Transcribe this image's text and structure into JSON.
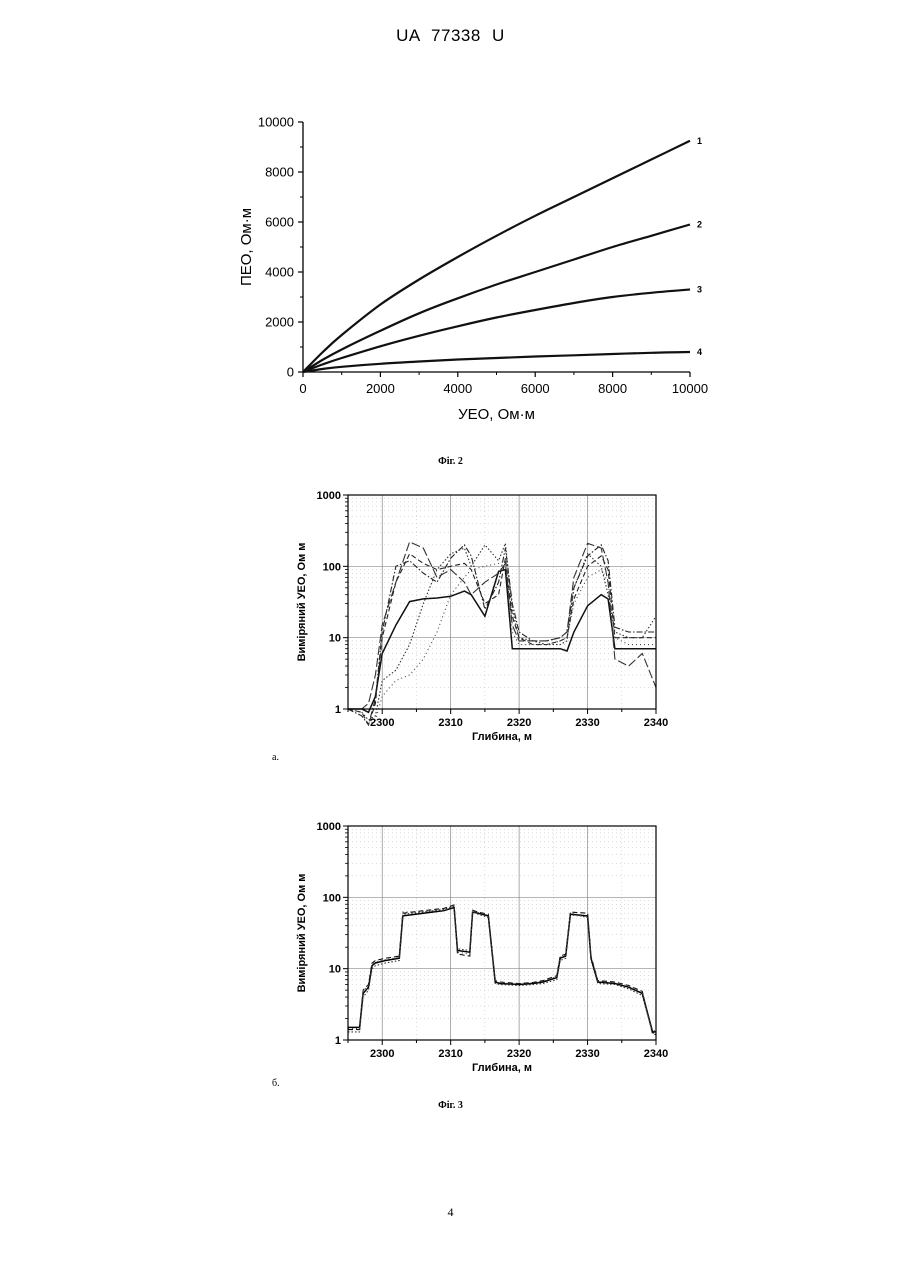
{
  "document": {
    "header": "UA 77338 U",
    "page_number": "4",
    "fig2_caption": "Фіг. 2",
    "fig3_caption": "Фіг. 3",
    "sub_a": "а.",
    "sub_b": "б."
  },
  "chart_data": [
    {
      "type": "line",
      "xlabel": "УЕО, Ом·м",
      "ylabel": "ПЕО, Ом·м",
      "xlim": [
        0,
        10000
      ],
      "ylim": [
        0,
        10000
      ],
      "x_ticks": [
        "0",
        "2000",
        "4000",
        "6000",
        "8000",
        "10000"
      ],
      "y_ticks": [
        "0",
        "2000",
        "4000",
        "6000",
        "8000",
        "10000"
      ],
      "x": [
        0,
        500,
        1000,
        2000,
        3000,
        4000,
        5000,
        6000,
        7000,
        8000,
        9000,
        10000
      ],
      "series": [
        {
          "name": "1",
          "values": [
            0,
            780,
            1480,
            2700,
            3700,
            4600,
            5450,
            6250,
            7000,
            7750,
            8500,
            9250
          ],
          "color": "#111111"
        },
        {
          "name": "2",
          "values": [
            0,
            480,
            900,
            1650,
            2350,
            2950,
            3500,
            4000,
            4500,
            5000,
            5450,
            5900
          ],
          "color": "#111111"
        },
        {
          "name": "3",
          "values": [
            0,
            300,
            560,
            1030,
            1450,
            1830,
            2180,
            2480,
            2760,
            3000,
            3170,
            3300
          ],
          "color": "#111111"
        },
        {
          "name": "4",
          "values": [
            0,
            120,
            210,
            330,
            420,
            500,
            560,
            620,
            670,
            720,
            770,
            800
          ],
          "color": "#111111"
        }
      ]
    },
    {
      "type": "line",
      "xlabel": "Глибина, м",
      "ylabel": "Виміряний УЕО, Ом м",
      "xlim": [
        2295,
        2340
      ],
      "ylim": [
        1,
        1000
      ],
      "log_y": true,
      "grid": true,
      "x_ticks": [
        "2300",
        "2310",
        "2320",
        "2330",
        "2340"
      ],
      "y_ticks": [
        "1",
        "10",
        "100",
        "1000"
      ],
      "x": [
        2295,
        2297,
        2298,
        2299,
        2300,
        2302,
        2304,
        2306,
        2308,
        2310,
        2312,
        2313,
        2315,
        2317,
        2318,
        2319,
        2320,
        2322,
        2324,
        2326,
        2327,
        2328,
        2330,
        2332,
        2333,
        2334,
        2336,
        2338,
        2340
      ],
      "series": [
        {
          "values": [
            1,
            1,
            0.9,
            1.5,
            6,
            15,
            32,
            35,
            36,
            38,
            45,
            40,
            20,
            85,
            90,
            7,
            7,
            7,
            7,
            7,
            6.5,
            12,
            28,
            40,
            35,
            7,
            7,
            7,
            7
          ],
          "style": "solid",
          "color": "#111111"
        },
        {
          "values": [
            1,
            0.9,
            0.6,
            1.2,
            10,
            60,
            150,
            110,
            90,
            100,
            110,
            90,
            30,
            40,
            130,
            20,
            10,
            8,
            8,
            9,
            10,
            35,
            100,
            140,
            90,
            10,
            10,
            10,
            10
          ],
          "style": "dash",
          "color": "#222222"
        },
        {
          "values": [
            1,
            0.8,
            0.6,
            1.4,
            12,
            100,
            120,
            80,
            60,
            130,
            200,
            140,
            25,
            60,
            180,
            30,
            12,
            9,
            9,
            10,
            12,
            50,
            140,
            200,
            120,
            14,
            12,
            12,
            12
          ],
          "style": "dashdot",
          "color": "#222222"
        },
        {
          "values": [
            1,
            1,
            1.2,
            3,
            15,
            60,
            220,
            180,
            70,
            90,
            60,
            40,
            60,
            80,
            110,
            15,
            9,
            9,
            9,
            10,
            12,
            70,
            210,
            180,
            60,
            5,
            4,
            6,
            2
          ],
          "style": "longdash",
          "color": "#333333"
        },
        {
          "values": [
            1,
            0.9,
            0.7,
            0.8,
            2.5,
            3.5,
            8,
            30,
            90,
            150,
            180,
            100,
            200,
            120,
            210,
            25,
            10,
            9,
            8,
            8,
            9,
            50,
            150,
            100,
            40,
            12,
            10,
            10,
            20
          ],
          "style": "dot",
          "color": "#333333"
        },
        {
          "values": [
            1,
            0.9,
            0.6,
            0.7,
            1.5,
            2.5,
            3,
            5,
            12,
            40,
            70,
            90,
            100,
            110,
            120,
            12,
            8,
            8,
            8,
            9,
            10,
            30,
            70,
            90,
            60,
            10,
            8,
            8,
            8
          ],
          "style": "dot2",
          "color": "#444444"
        }
      ]
    },
    {
      "type": "line",
      "xlabel": "Глибина, м",
      "ylabel": "Виміряний УЕО, Ом м",
      "xlim": [
        2295,
        2340
      ],
      "ylim": [
        1,
        1000
      ],
      "log_y": true,
      "grid": true,
      "x_ticks": [
        "2300",
        "2310",
        "2320",
        "2330",
        "2340"
      ],
      "y_ticks": [
        "1",
        "10",
        "100",
        "1000"
      ],
      "x": [
        2295,
        2296.7,
        2297.2,
        2298,
        2298.5,
        2299,
        2300.5,
        2302.5,
        2303,
        2306,
        2309,
        2310.5,
        2311,
        2312.8,
        2313.2,
        2314,
        2315.5,
        2316.5,
        2317.2,
        2320,
        2322,
        2323.5,
        2325.5,
        2326,
        2326.8,
        2327.5,
        2330,
        2330.5,
        2331.5,
        2334,
        2336,
        2338,
        2339.5,
        2340
      ],
      "series": [
        {
          "values": [
            1.5,
            1.5,
            4.5,
            5.5,
            11,
            12,
            13,
            14,
            55,
            60,
            65,
            72,
            18,
            17,
            62,
            60,
            55,
            6.5,
            6.2,
            6.0,
            6.2,
            6.5,
            7.5,
            14,
            15,
            58,
            55,
            14,
            6.5,
            6.2,
            5.5,
            4.5,
            1.3,
            1.3
          ],
          "style": "solid",
          "color": "#000000"
        },
        {
          "values": [
            1.4,
            1.4,
            5,
            6,
            12,
            13,
            14,
            15,
            60,
            65,
            70,
            78,
            16,
            15,
            66,
            62,
            58,
            6.8,
            6.5,
            6.2,
            6.4,
            6.8,
            8,
            15,
            16,
            62,
            60,
            15,
            6.8,
            6.5,
            5.8,
            4.8,
            1.2,
            1.2
          ],
          "style": "dash",
          "color": "#111111"
        },
        {
          "values": [
            1.3,
            1.3,
            4,
            5,
            10,
            11,
            12,
            13,
            58,
            62,
            68,
            75,
            19,
            18,
            64,
            58,
            52,
            6.2,
            6.0,
            5.8,
            6.0,
            6.2,
            7,
            13,
            14,
            60,
            52,
            13,
            6.2,
            6.0,
            5.2,
            4.2,
            1.25,
            1.25
          ],
          "style": "dot",
          "color": "#333333"
        },
        {
          "values": [
            1.45,
            1.45,
            4.8,
            5.8,
            11.5,
            12.5,
            13.5,
            14.5,
            62,
            63,
            66,
            70,
            17,
            16,
            63,
            61,
            56,
            6.6,
            6.3,
            6.1,
            6.3,
            6.6,
            7.8,
            14.5,
            15.5,
            56,
            54,
            14.5,
            6.6,
            6.3,
            5.6,
            4.6,
            1.35,
            1.35
          ],
          "style": "dot2",
          "color": "#444444"
        }
      ]
    }
  ]
}
